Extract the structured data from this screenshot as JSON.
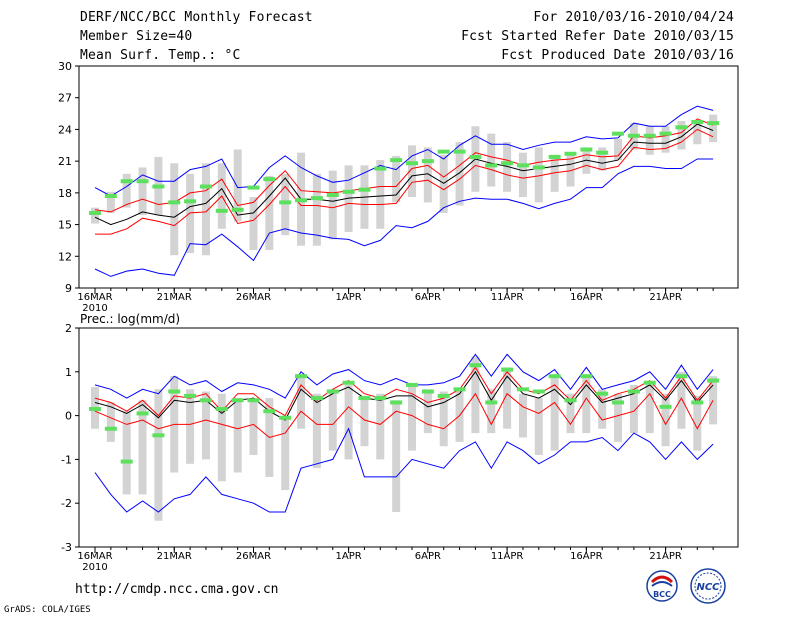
{
  "header": {
    "title": "DERF/NCC/BCC Monthly Forecast",
    "member": "Member Size=40",
    "variable": "Mean Surf. Temp.: °C",
    "period": "For 2010/03/16-2010/04/24",
    "start": "Fcst Started Refer Date 2010/03/15",
    "produced": "Fcst Produced Date 2010/03/16"
  },
  "footer": {
    "url": "http://cmdp.ncc.cma.gov.cn",
    "credit": "GrADS: COLA/IGES"
  },
  "logos": {
    "bcc": "BCC",
    "ncc": "NCC"
  },
  "colors": {
    "envelope": "#0000ff",
    "mean": "#000000",
    "band": "#ff0000",
    "bar": "#d3d3d3",
    "marker": "#5de05d"
  },
  "chart_data": [
    {
      "type": "line",
      "title": "Mean Surf. Temp.: °C",
      "x_tick_labels": [
        "16MAR",
        "21MAR",
        "26MAR",
        "1APR",
        "6APR",
        "11APR",
        "16APR",
        "21APR"
      ],
      "x_tick_day_index": [
        0,
        5,
        10,
        16,
        21,
        26,
        31,
        36
      ],
      "x_year_label": "2010",
      "ylim": [
        9,
        30
      ],
      "y_ticks": [
        9,
        12,
        15,
        18,
        21,
        24,
        27,
        30
      ],
      "days": 40,
      "series": [
        {
          "name": "max",
          "values": [
            18.5,
            17.7,
            18.6,
            19.7,
            19.1,
            19.1,
            20.2,
            20.5,
            21.2,
            18.5,
            18.6,
            20.4,
            21.5,
            20.4,
            19.6,
            19.0,
            19.2,
            19.9,
            20.6,
            20.2,
            21.5,
            22.1,
            21.2,
            22.5,
            23.4,
            22.6,
            22.6,
            22.1,
            22.5,
            22.8,
            22.8,
            23.3,
            23.1,
            23.2,
            24.6,
            24.3,
            24.3,
            25.4,
            26.2,
            25.8
          ]
        },
        {
          "name": "upper",
          "values": [
            16.4,
            16.2,
            16.9,
            17.4,
            16.9,
            17.1,
            18.0,
            18.2,
            19.3,
            16.8,
            17.1,
            18.7,
            20.1,
            18.2,
            18.1,
            18.0,
            18.2,
            18.4,
            18.6,
            18.6,
            20.3,
            20.6,
            19.5,
            20.6,
            21.8,
            21.4,
            21.1,
            20.6,
            20.9,
            21.1,
            21.2,
            21.6,
            21.4,
            21.5,
            23.4,
            23.2,
            23.4,
            23.7,
            25.0,
            24.4
          ]
        },
        {
          "name": "mean",
          "values": [
            15.7,
            15.0,
            15.5,
            16.2,
            15.9,
            15.7,
            16.7,
            17.0,
            18.4,
            15.9,
            16.1,
            17.7,
            19.4,
            17.4,
            17.4,
            17.2,
            17.5,
            17.6,
            17.7,
            17.8,
            19.6,
            19.8,
            18.9,
            19.9,
            21.2,
            20.8,
            20.5,
            20.1,
            20.3,
            20.5,
            20.7,
            21.1,
            20.8,
            21.1,
            22.8,
            22.7,
            22.7,
            23.3,
            24.5,
            23.9
          ]
        },
        {
          "name": "lower",
          "values": [
            14.1,
            14.1,
            14.6,
            15.6,
            15.3,
            14.9,
            16.1,
            16.2,
            17.7,
            15.1,
            15.4,
            16.9,
            18.6,
            16.8,
            16.8,
            16.6,
            17.0,
            16.9,
            16.9,
            17.0,
            19.0,
            19.2,
            18.3,
            19.3,
            20.6,
            20.2,
            19.7,
            19.4,
            19.6,
            19.9,
            20.1,
            20.6,
            20.2,
            20.5,
            22.3,
            22.1,
            22.2,
            22.8,
            24.0,
            23.3
          ]
        },
        {
          "name": "min",
          "values": [
            10.8,
            10.1,
            10.6,
            10.8,
            10.4,
            10.2,
            13.2,
            13.1,
            14.1,
            12.9,
            11.6,
            14.2,
            14.6,
            14.2,
            14.0,
            13.7,
            13.6,
            13.0,
            13.5,
            14.9,
            14.7,
            15.3,
            16.6,
            17.2,
            17.5,
            17.4,
            17.4,
            17.0,
            16.5,
            17.0,
            17.4,
            18.5,
            18.5,
            19.8,
            20.5,
            20.5,
            20.3,
            20.3,
            21.2,
            21.2
          ]
        },
        {
          "name": "bar_top",
          "values": [
            16.6,
            18.1,
            19.8,
            20.4,
            21.4,
            20.8,
            19.8,
            20.8,
            20.8,
            22.1,
            17.6,
            19.6,
            19.8,
            21.8,
            19.8,
            20.1,
            20.6,
            20.6,
            21.1,
            21.5,
            22.5,
            22.3,
            21.6,
            22.8,
            24.3,
            23.6,
            22.8,
            21.8,
            22.3,
            21.6,
            21.8,
            22.3,
            22.3,
            23.1,
            24.6,
            24.3,
            24.3,
            24.8,
            24.8,
            25.4
          ]
        },
        {
          "name": "bar_bottom",
          "values": [
            15.1,
            16.1,
            16.6,
            15.9,
            15.9,
            12.1,
            12.3,
            12.1,
            14.6,
            15.3,
            12.6,
            12.6,
            14.0,
            13.0,
            13.0,
            13.6,
            14.3,
            14.6,
            14.6,
            17.1,
            17.6,
            17.1,
            16.1,
            16.8,
            18.1,
            18.6,
            18.1,
            17.6,
            17.1,
            18.1,
            18.6,
            19.8,
            20.1,
            21.1,
            22.1,
            21.6,
            21.8,
            22.1,
            22.6,
            22.8
          ]
        },
        {
          "name": "markers",
          "values": [
            16.1,
            17.7,
            19.1,
            19.1,
            18.6,
            17.1,
            17.2,
            18.6,
            16.3,
            16.4,
            18.5,
            19.3,
            17.1,
            17.3,
            17.5,
            17.8,
            18.1,
            18.3,
            20.3,
            21.1,
            20.8,
            21.0,
            21.9,
            21.9,
            21.4,
            20.6,
            20.8,
            20.6,
            20.4,
            21.4,
            21.7,
            22.1,
            21.8,
            23.6,
            23.4,
            23.4,
            23.6,
            24.2,
            24.7,
            24.6
          ]
        }
      ]
    },
    {
      "type": "line",
      "title": "Prec.: log(mm/d)",
      "x_tick_labels": [
        "16MAR",
        "21MAR",
        "26MAR",
        "1APR",
        "6APR",
        "11APR",
        "16APR",
        "21APR"
      ],
      "x_tick_day_index": [
        0,
        5,
        10,
        16,
        21,
        26,
        31,
        36
      ],
      "x_year_label": "2010",
      "ylim": [
        -3,
        2
      ],
      "y_ticks": [
        -3,
        -2,
        -1,
        0,
        1,
        2
      ],
      "days": 40,
      "series": [
        {
          "name": "max",
          "values": [
            0.7,
            0.6,
            0.4,
            0.6,
            0.5,
            0.9,
            0.7,
            0.8,
            0.55,
            0.75,
            0.7,
            0.6,
            0.4,
            1.0,
            0.7,
            0.95,
            1.05,
            0.8,
            0.7,
            0.85,
            0.7,
            0.7,
            0.75,
            0.9,
            1.4,
            0.9,
            1.4,
            1.0,
            0.8,
            1.05,
            0.6,
            1.1,
            0.6,
            0.7,
            0.8,
            1.0,
            0.6,
            1.15,
            0.6,
            1.05
          ]
        },
        {
          "name": "upper",
          "values": [
            0.4,
            0.3,
            0.1,
            0.35,
            0.0,
            0.45,
            0.4,
            0.5,
            0.1,
            0.5,
            0.5,
            0.2,
            0.0,
            0.7,
            0.35,
            0.6,
            0.8,
            0.5,
            0.4,
            0.6,
            0.5,
            0.3,
            0.4,
            0.6,
            1.1,
            0.5,
            1.0,
            0.6,
            0.5,
            0.7,
            0.35,
            0.8,
            0.35,
            0.5,
            0.6,
            0.8,
            0.4,
            0.9,
            0.35,
            0.8
          ]
        },
        {
          "name": "mean",
          "values": [
            0.3,
            0.2,
            0.05,
            0.25,
            -0.05,
            0.35,
            0.3,
            0.35,
            0.05,
            0.35,
            0.4,
            0.1,
            -0.1,
            0.6,
            0.3,
            0.5,
            0.65,
            0.4,
            0.35,
            0.45,
            0.45,
            0.2,
            0.3,
            0.5,
            1.0,
            0.35,
            0.9,
            0.5,
            0.4,
            0.6,
            0.25,
            0.7,
            0.3,
            0.4,
            0.5,
            0.7,
            0.35,
            0.8,
            0.3,
            0.7
          ]
        },
        {
          "name": "lower",
          "values": [
            0.1,
            -0.05,
            -0.2,
            -0.1,
            -0.3,
            -0.2,
            -0.2,
            -0.1,
            -0.2,
            -0.3,
            -0.2,
            -0.5,
            -0.4,
            0.1,
            -0.2,
            -0.2,
            0.2,
            -0.1,
            -0.2,
            0.1,
            0.0,
            -0.2,
            -0.3,
            0.0,
            0.5,
            -0.2,
            0.5,
            0.2,
            0.05,
            0.3,
            -0.2,
            0.4,
            -0.1,
            0.0,
            0.1,
            0.5,
            -0.2,
            0.4,
            -0.3,
            0.35
          ]
        },
        {
          "name": "min",
          "values": [
            -1.3,
            -1.8,
            -2.2,
            -1.95,
            -2.2,
            -1.9,
            -1.8,
            -1.4,
            -1.8,
            -1.9,
            -2.0,
            -2.2,
            -2.2,
            -1.2,
            -1.1,
            -1.0,
            -0.3,
            -1.4,
            -1.4,
            -1.4,
            -1.0,
            -1.1,
            -1.2,
            -0.8,
            -0.6,
            -1.2,
            -0.6,
            -0.8,
            -1.1,
            -0.9,
            -0.6,
            -0.6,
            -0.5,
            -0.8,
            -0.4,
            -0.6,
            -1.0,
            -0.6,
            -1.0,
            -0.65
          ]
        },
        {
          "name": "bar_top",
          "values": [
            0.65,
            0.3,
            0.1,
            0.35,
            0.6,
            0.9,
            0.6,
            0.55,
            0.5,
            0.4,
            0.4,
            0.4,
            0.0,
            0.9,
            0.5,
            0.6,
            0.7,
            0.45,
            0.5,
            0.35,
            0.7,
            0.6,
            0.55,
            0.6,
            1.35,
            0.6,
            1.1,
            0.5,
            0.4,
            0.9,
            0.5,
            0.9,
            0.6,
            0.5,
            0.7,
            0.7,
            0.5,
            1.0,
            0.45,
            0.9
          ]
        },
        {
          "name": "bar_bottom",
          "values": [
            -0.3,
            -0.6,
            -1.8,
            -1.8,
            -2.4,
            -1.3,
            -1.1,
            -1.0,
            -1.5,
            -1.3,
            -0.9,
            -1.4,
            -1.7,
            -0.3,
            -1.2,
            -0.8,
            -1.0,
            -0.7,
            -1.0,
            -2.2,
            -0.8,
            -0.4,
            -0.7,
            -0.6,
            -0.4,
            -0.4,
            -0.3,
            -0.5,
            -0.9,
            -0.8,
            -0.4,
            -0.4,
            -0.3,
            -0.6,
            -0.4,
            -0.4,
            -0.7,
            -0.3,
            -0.8,
            -0.2
          ]
        },
        {
          "name": "markers",
          "values": [
            0.15,
            -0.3,
            -1.05,
            0.05,
            -0.45,
            0.55,
            0.45,
            0.35,
            0.15,
            0.35,
            0.35,
            0.1,
            -0.05,
            0.9,
            0.4,
            0.55,
            0.75,
            0.4,
            0.4,
            0.3,
            0.7,
            0.55,
            0.45,
            0.6,
            1.15,
            0.3,
            1.05,
            0.6,
            0.55,
            0.9,
            0.35,
            0.9,
            0.5,
            0.3,
            0.55,
            0.75,
            0.2,
            0.9,
            0.3,
            0.8
          ]
        }
      ]
    }
  ]
}
